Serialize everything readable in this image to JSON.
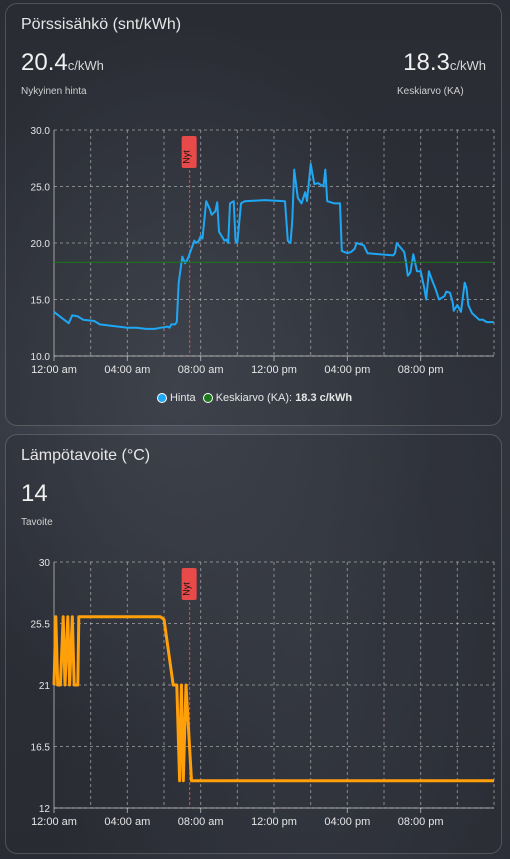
{
  "card1": {
    "title": "Pörssisähkö (snt/kWh)",
    "current_value": "20.4",
    "current_unit": "c/kWh",
    "current_label": "Nykyinen hinta",
    "avg_value": "18.3",
    "avg_unit": "c/kWh",
    "avg_label": "Keskiarvo (KA)",
    "now_label": "Nyt",
    "legend": {
      "hinta": "Hinta",
      "keskiarvo": "Keskiarvo (KA):",
      "keskiarvo_value": "18.3 c/kWh"
    }
  },
  "card2": {
    "title": "Lämpötavoite (°C)",
    "value": "14",
    "label": "Tavoite",
    "now_label": "Nyt"
  },
  "colors": {
    "price": "#1ea7f4",
    "average": "#1b7a1b",
    "target": "#ff9f0a",
    "now_marker": "#e84a4a",
    "grid": "#cfcfcf"
  },
  "chart_data": [
    {
      "type": "line",
      "x_ticks": [
        "12:00 am",
        "04:00 am",
        "08:00 am",
        "12:00 pm",
        "04:00 pm",
        "08:00 pm"
      ],
      "y_ticks": [
        "10.0",
        "15.0",
        "20.0",
        "25.0",
        "30.0"
      ],
      "ylim": [
        10,
        30
      ],
      "xlim_hours": [
        0,
        24
      ],
      "now_hour": 7.4,
      "average": 18.3,
      "series": [
        {
          "name": "Hinta",
          "points": [
            [
              0,
              13.9
            ],
            [
              0.4,
              13.4
            ],
            [
              0.8,
              12.9
            ],
            [
              1.0,
              13.6
            ],
            [
              1.3,
              13.5
            ],
            [
              1.6,
              13.2
            ],
            [
              2.2,
              13.1
            ],
            [
              2.5,
              12.8
            ],
            [
              3.0,
              12.7
            ],
            [
              3.5,
              12.6
            ],
            [
              4.0,
              12.5
            ],
            [
              4.5,
              12.5
            ],
            [
              5.0,
              12.4
            ],
            [
              5.5,
              12.4
            ],
            [
              5.8,
              12.5
            ],
            [
              6.2,
              12.6
            ],
            [
              6.3,
              12.5
            ],
            [
              6.4,
              12.8
            ],
            [
              6.6,
              12.8
            ],
            [
              6.7,
              13.0
            ],
            [
              6.8,
              16.5
            ],
            [
              7.0,
              18.8
            ],
            [
              7.15,
              18.2
            ],
            [
              7.3,
              18.6
            ],
            [
              7.5,
              19.5
            ],
            [
              7.65,
              20.2
            ],
            [
              7.75,
              20.0
            ],
            [
              7.9,
              20.2
            ],
            [
              8.0,
              20.6
            ],
            [
              8.1,
              20.4
            ],
            [
              8.2,
              22.0
            ],
            [
              8.3,
              23.7
            ],
            [
              8.5,
              23.0
            ],
            [
              8.6,
              22.5
            ],
            [
              8.8,
              22.8
            ],
            [
              8.9,
              23.6
            ],
            [
              9.0,
              21.0
            ],
            [
              9.3,
              20.2
            ],
            [
              9.4,
              20.3
            ],
            [
              9.5,
              20.0
            ],
            [
              9.6,
              23.5
            ],
            [
              9.8,
              23.7
            ],
            [
              9.9,
              20.2
            ],
            [
              10.0,
              20.0
            ],
            [
              10.2,
              23.5
            ],
            [
              10.4,
              23.7
            ],
            [
              11.5,
              23.8
            ],
            [
              12.6,
              23.7
            ],
            [
              12.75,
              20.2
            ],
            [
              12.9,
              20.0
            ],
            [
              13.0,
              22.0
            ],
            [
              13.1,
              26.5
            ],
            [
              13.3,
              24.0
            ],
            [
              13.5,
              23.5
            ],
            [
              13.7,
              24.5
            ],
            [
              13.8,
              23.7
            ],
            [
              14.0,
              27.0
            ],
            [
              14.2,
              25.2
            ],
            [
              14.4,
              25.3
            ],
            [
              14.7,
              25.0
            ],
            [
              14.8,
              26.5
            ],
            [
              14.9,
              23.7
            ],
            [
              15.3,
              23.5
            ],
            [
              15.6,
              23.5
            ],
            [
              15.7,
              19.3
            ],
            [
              16.0,
              19.1
            ],
            [
              16.2,
              19.2
            ],
            [
              16.4,
              19.5
            ],
            [
              16.5,
              20.0
            ],
            [
              16.9,
              19.8
            ],
            [
              17.1,
              19.1
            ],
            [
              18.5,
              18.9
            ],
            [
              18.6,
              19.1
            ],
            [
              18.7,
              20.0
            ],
            [
              18.9,
              19.6
            ],
            [
              19.1,
              19.2
            ],
            [
              19.2,
              18.3
            ],
            [
              19.3,
              17.1
            ],
            [
              19.4,
              17.3
            ],
            [
              19.45,
              17.5
            ],
            [
              19.6,
              19.0
            ],
            [
              19.8,
              17.5
            ],
            [
              20.0,
              17.5
            ],
            [
              20.2,
              16.0
            ],
            [
              20.3,
              15.0
            ],
            [
              20.45,
              17.5
            ],
            [
              20.6,
              16.8
            ],
            [
              20.8,
              16.0
            ],
            [
              21.0,
              15.0
            ],
            [
              21.3,
              15.3
            ],
            [
              21.4,
              15.7
            ],
            [
              21.6,
              15.6
            ],
            [
              21.75,
              14.7
            ],
            [
              21.8,
              14.0
            ],
            [
              22.0,
              14.5
            ],
            [
              22.2,
              13.9
            ],
            [
              22.4,
              16.5
            ],
            [
              22.5,
              16.0
            ],
            [
              22.6,
              14.5
            ],
            [
              22.8,
              13.8
            ],
            [
              23.2,
              13.2
            ],
            [
              23.4,
              13.2
            ],
            [
              23.6,
              13.0
            ],
            [
              24.0,
              13.0
            ]
          ]
        },
        {
          "name": "Keskiarvo (KA)",
          "points": [
            [
              0,
              18.3
            ],
            [
              24,
              18.3
            ]
          ]
        }
      ]
    },
    {
      "type": "line",
      "x_ticks": [
        "12:00 am",
        "04:00 am",
        "08:00 am",
        "12:00 pm",
        "04:00 pm",
        "08:00 pm"
      ],
      "y_ticks": [
        "12",
        "16.5",
        "21",
        "25.5",
        "30"
      ],
      "ylim": [
        12,
        30
      ],
      "xlim_hours": [
        0,
        24
      ],
      "now_hour": 7.4,
      "series": [
        {
          "name": "Tavoite",
          "points": [
            [
              0,
              21
            ],
            [
              0.1,
              26
            ],
            [
              0.2,
              21
            ],
            [
              0.35,
              21
            ],
            [
              0.5,
              26
            ],
            [
              0.6,
              21
            ],
            [
              0.75,
              26
            ],
            [
              0.85,
              21
            ],
            [
              1.0,
              26
            ],
            [
              1.1,
              21
            ],
            [
              1.3,
              21
            ],
            [
              1.35,
              26
            ],
            [
              5.8,
              26
            ],
            [
              6.0,
              25.8
            ],
            [
              6.5,
              21
            ],
            [
              6.7,
              21
            ],
            [
              6.85,
              14
            ],
            [
              6.95,
              21
            ],
            [
              7.05,
              14
            ],
            [
              7.2,
              21
            ],
            [
              7.5,
              14
            ],
            [
              24,
              14
            ]
          ]
        }
      ]
    }
  ]
}
